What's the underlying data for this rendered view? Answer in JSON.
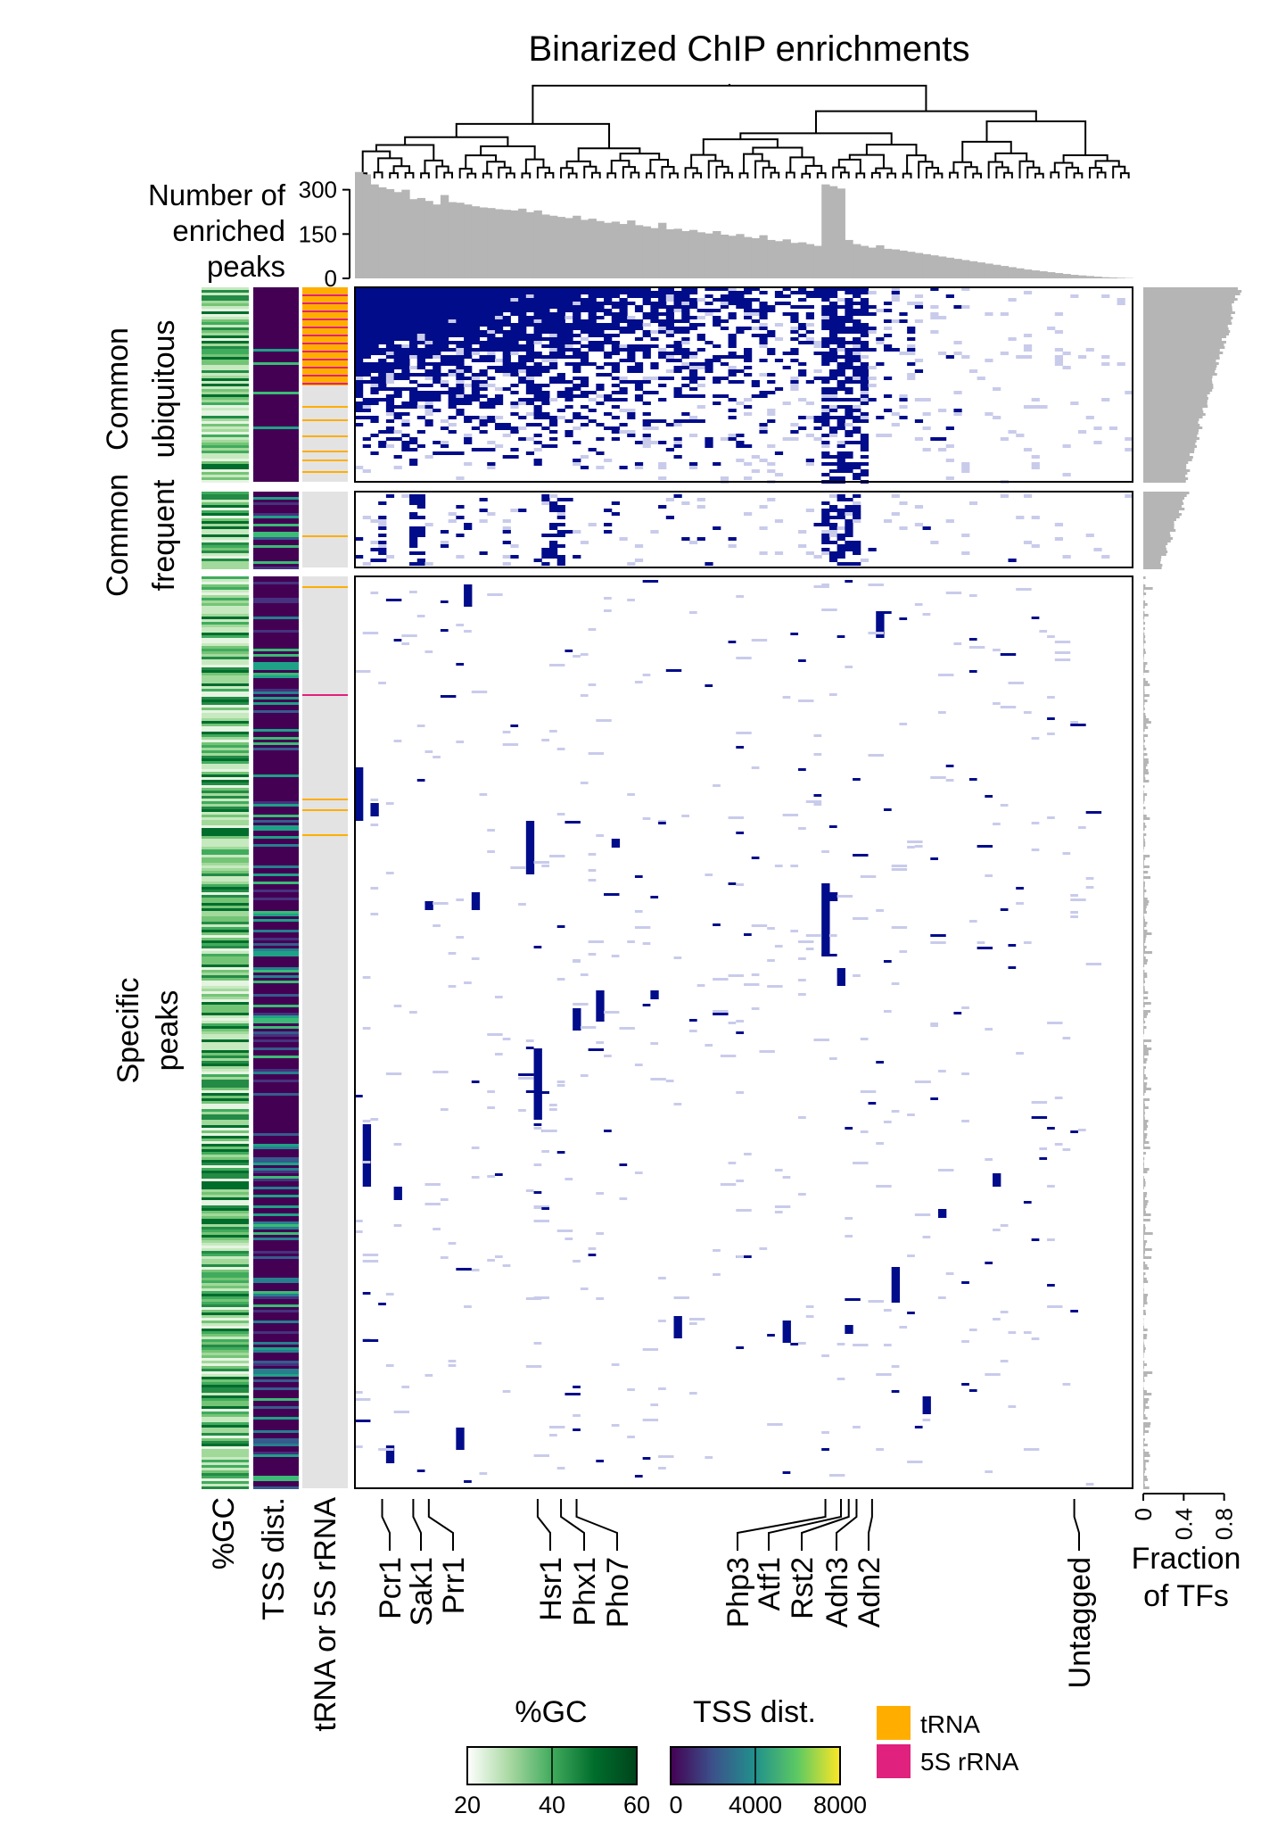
{
  "chart_data": {
    "type": "heatmap",
    "title": "Binarized ChIP enrichments",
    "top_axis": {
      "label_lines": [
        "Number of",
        "enriched",
        "peaks"
      ],
      "ticks": [
        0,
        150,
        300
      ],
      "ylim": [
        0,
        320
      ],
      "bar_values": [
        360,
        352,
        318,
        308,
        302,
        292,
        300,
        268,
        272,
        262,
        250,
        282,
        258,
        256,
        250,
        244,
        240,
        238,
        234,
        232,
        230,
        236,
        224,
        230,
        216,
        212,
        208,
        204,
        212,
        198,
        202,
        194,
        188,
        192,
        184,
        196,
        180,
        176,
        170,
        188,
        166,
        168,
        160,
        164,
        156,
        152,
        160,
        148,
        144,
        150,
        140,
        136,
        146,
        130,
        126,
        132,
        120,
        122,
        116,
        110,
        318,
        312,
        304,
        130,
        116,
        110,
        104,
        112,
        100,
        98,
        94,
        90,
        86,
        82,
        78,
        74,
        70,
        66,
        62,
        58,
        54,
        50,
        46,
        42,
        38,
        34,
        30,
        27,
        24,
        21,
        18,
        15,
        12,
        10,
        8,
        6,
        4,
        3,
        2,
        1
      ]
    },
    "row_groups": [
      {
        "label_lines": [
          "Common",
          "ubiquitous"
        ],
        "fraction_range": [
          0.4,
          0.95
        ]
      },
      {
        "label_lines": [
          "Common",
          "frequent"
        ],
        "fraction_range": [
          0.15,
          0.45
        ]
      },
      {
        "label_lines": [
          "Specific",
          "peaks"
        ],
        "fraction_range": [
          0.0,
          0.1
        ]
      }
    ],
    "annotation_tracks": [
      "%GC",
      "TSS dist.",
      "tRNA or 5S rRNA"
    ],
    "tf_labels": [
      "Pcr1",
      "Sak1",
      "Prr1",
      "Hsr1",
      "Phx1",
      "Pho7",
      "Php3",
      "Atf1",
      "Rst2",
      "Adn3",
      "Adn2",
      "Untagged"
    ],
    "right_axis": {
      "label_lines": [
        "Fraction",
        "of TFs"
      ],
      "ticks": [
        0,
        0.4,
        0.8
      ],
      "xlim": [
        0,
        0.9
      ]
    },
    "legends": {
      "gc": {
        "title": "%GC",
        "ticks": [
          20,
          40,
          60
        ],
        "colors": [
          "#ffffff",
          "#a9d8a2",
          "#41ab5d",
          "#006d2c",
          "#00441b"
        ]
      },
      "tss": {
        "title": "TSS dist.",
        "ticks": [
          0,
          4000,
          8000
        ],
        "colors": [
          "#440154",
          "#3b528b",
          "#21918c",
          "#5ec962",
          "#fde725"
        ]
      },
      "categories": [
        {
          "name": "tRNA",
          "color": "#ffae00"
        },
        {
          "name": "5S rRNA",
          "color": "#e0217d"
        }
      ]
    },
    "colors": {
      "enriched": "#000c8a",
      "weak": "#c9cbeb",
      "bars": "#b5b5b5",
      "track_bg": "#e3e3e3"
    }
  }
}
